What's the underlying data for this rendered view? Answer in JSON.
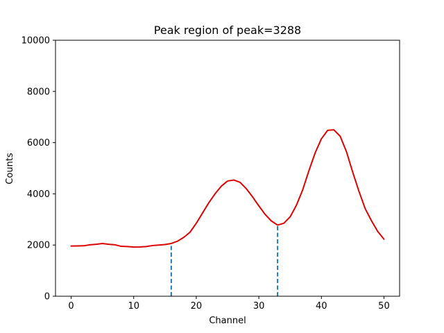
{
  "chart_data": {
    "type": "line",
    "title": "Peak region of peak=3288",
    "xlabel": "Channel",
    "ylabel": "Counts",
    "xlim": [
      -2.5,
      52.5
    ],
    "ylim": [
      0,
      10000
    ],
    "x_ticks": [
      0,
      10,
      20,
      30,
      40,
      50
    ],
    "y_ticks": [
      0,
      2000,
      4000,
      6000,
      8000,
      10000
    ],
    "grid": false,
    "series": [
      {
        "color": "#e00000",
        "x": [
          0,
          1,
          2,
          3,
          4,
          5,
          6,
          7,
          8,
          9,
          10,
          11,
          12,
          13,
          14,
          15,
          16,
          17,
          18,
          19,
          20,
          21,
          22,
          23,
          24,
          25,
          26,
          27,
          28,
          29,
          30,
          31,
          32,
          33,
          34,
          35,
          36,
          37,
          38,
          39,
          40,
          41,
          42,
          43,
          44,
          45,
          46,
          47,
          48,
          49,
          50
        ],
        "y": [
          1960,
          1965,
          1970,
          2010,
          2030,
          2060,
          2030,
          2010,
          1950,
          1940,
          1920,
          1925,
          1940,
          1980,
          2000,
          2020,
          2060,
          2150,
          2300,
          2500,
          2850,
          3250,
          3650,
          4000,
          4300,
          4500,
          4540,
          4450,
          4200,
          3880,
          3530,
          3200,
          2940,
          2780,
          2850,
          3100,
          3550,
          4150,
          4900,
          5600,
          6150,
          6480,
          6500,
          6250,
          5650,
          4850,
          4100,
          3420,
          2950,
          2530,
          2230
        ]
      }
    ],
    "markers": [
      {
        "x": 16,
        "y": 2060,
        "color": "#1f77b4",
        "style": "dashed"
      },
      {
        "x": 33,
        "y": 2780,
        "color": "#1f77b4",
        "style": "dashed"
      }
    ]
  }
}
